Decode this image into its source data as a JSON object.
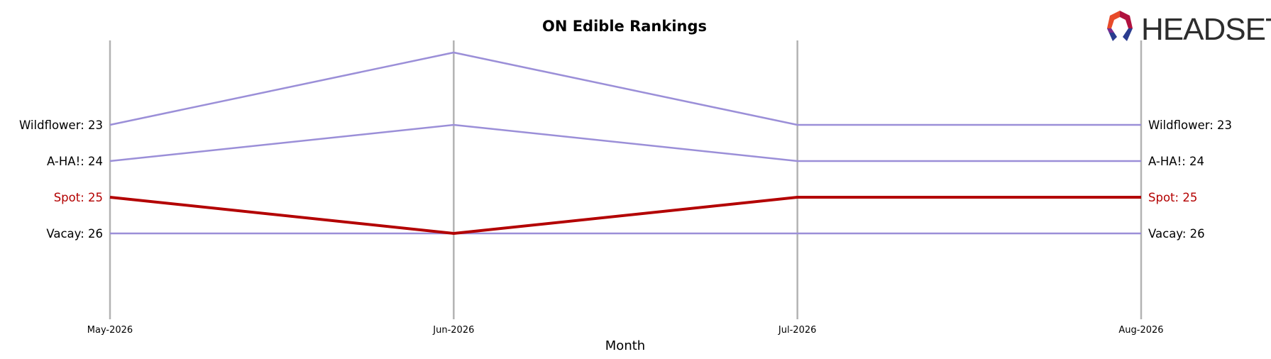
{
  "chart_data": {
    "type": "line",
    "title": "ON Edible Rankings",
    "xlabel": "Month",
    "ylabel": "",
    "categories": [
      "May-2026",
      "Jun-2026",
      "Jul-2026",
      "Aug-2026"
    ],
    "y_inverted": true,
    "ylim": [
      29.5,
      20.5
    ],
    "grid": "vertical lines at each month",
    "series": [
      {
        "name": "Wildflower",
        "values": [
          23,
          21,
          23,
          23
        ],
        "color": "#9b8fd8",
        "highlight": false
      },
      {
        "name": "A-HA!",
        "values": [
          24,
          23,
          24,
          24
        ],
        "color": "#9b8fd8",
        "highlight": false
      },
      {
        "name": "Spot",
        "values": [
          25,
          26,
          25,
          25
        ],
        "color": "#b30000",
        "highlight": true
      },
      {
        "name": "Vacay",
        "values": [
          26,
          26,
          26,
          26
        ],
        "color": "#9b8fd8",
        "highlight": false
      }
    ]
  },
  "logo": {
    "text": "HEADSET"
  }
}
